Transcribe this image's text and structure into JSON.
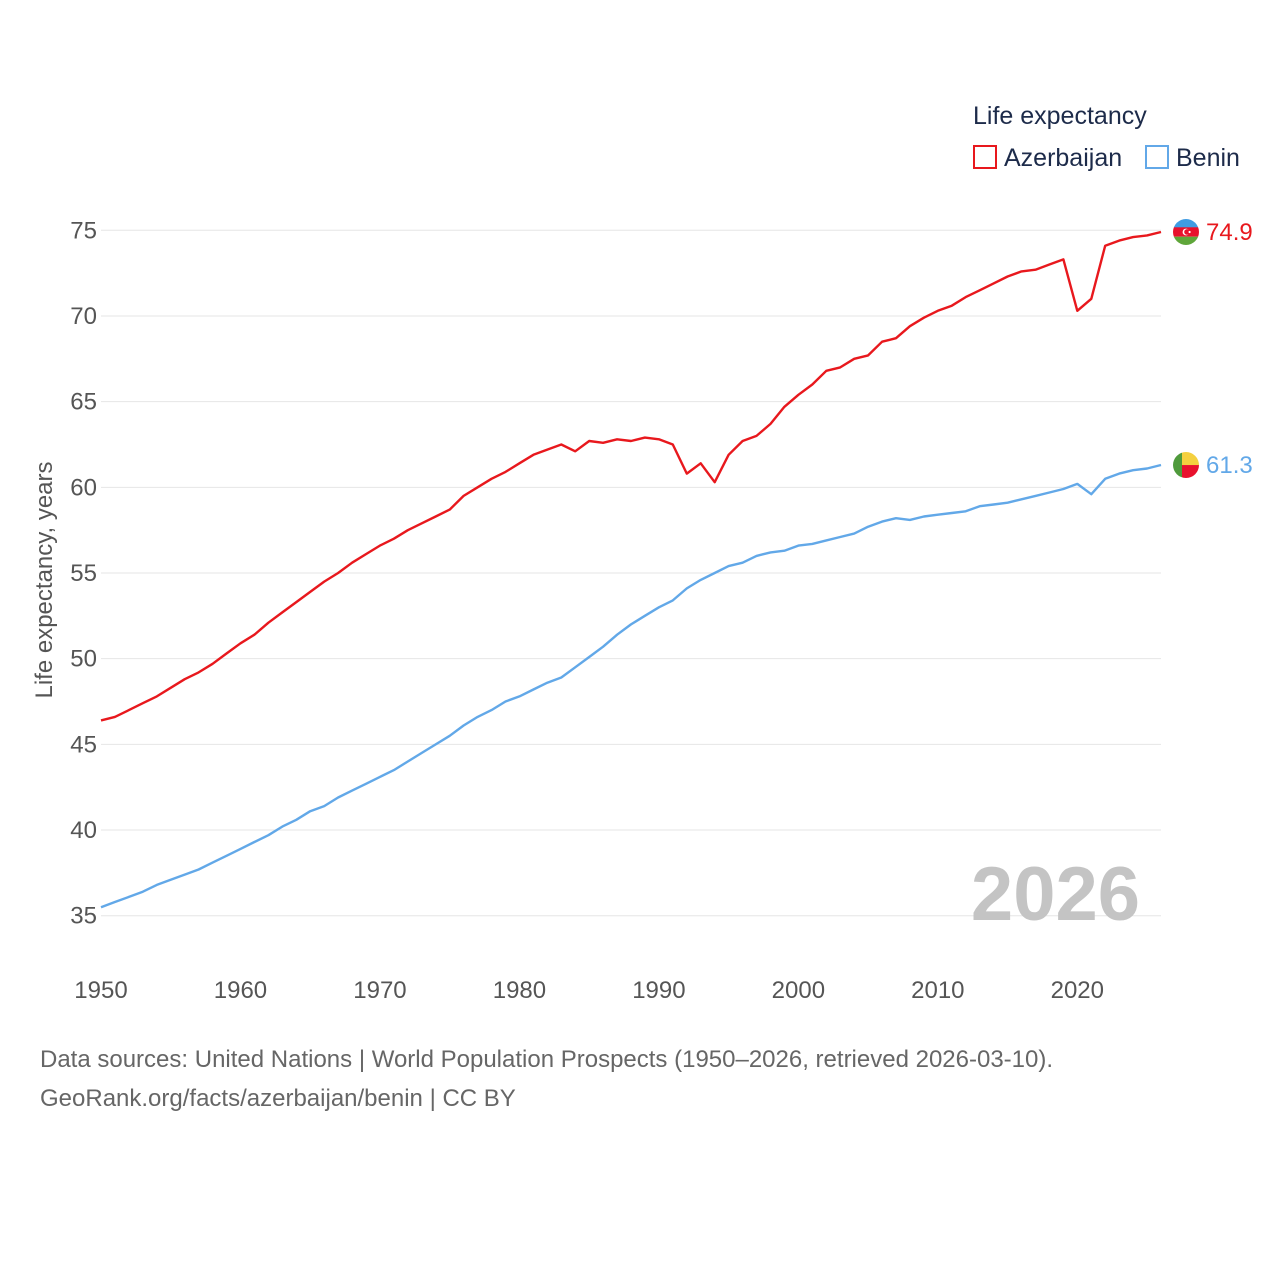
{
  "chart_data": {
    "type": "line",
    "legend_title": "Life expectancy",
    "ylabel": "Life expectancy, years",
    "xlim": [
      1950,
      2026
    ],
    "ylim": [
      33,
      77
    ],
    "y_ticks": [
      35,
      40,
      45,
      50,
      55,
      60,
      65,
      70,
      75
    ],
    "x_ticks": [
      1950,
      1960,
      1970,
      1980,
      1990,
      2000,
      2010,
      2020
    ],
    "grid": true,
    "legend_position": "top-right",
    "year_label": "2026",
    "x": [
      1950,
      1951,
      1952,
      1953,
      1954,
      1955,
      1956,
      1957,
      1958,
      1959,
      1960,
      1961,
      1962,
      1963,
      1964,
      1965,
      1966,
      1967,
      1968,
      1969,
      1970,
      1971,
      1972,
      1973,
      1974,
      1975,
      1976,
      1977,
      1978,
      1979,
      1980,
      1981,
      1982,
      1983,
      1984,
      1985,
      1986,
      1987,
      1988,
      1989,
      1990,
      1991,
      1992,
      1993,
      1994,
      1995,
      1996,
      1997,
      1998,
      1999,
      2000,
      2001,
      2002,
      2003,
      2004,
      2005,
      2006,
      2007,
      2008,
      2009,
      2010,
      2011,
      2012,
      2013,
      2014,
      2015,
      2016,
      2017,
      2018,
      2019,
      2020,
      2021,
      2022,
      2023,
      2024,
      2025,
      2026
    ],
    "series": [
      {
        "name": "Azerbaijan",
        "color": "#e8181d",
        "end_label": "74.9",
        "values": [
          46.4,
          46.6,
          47.0,
          47.4,
          47.8,
          48.3,
          48.8,
          49.2,
          49.7,
          50.3,
          50.9,
          51.4,
          52.1,
          52.7,
          53.3,
          53.9,
          54.5,
          55.0,
          55.6,
          56.1,
          56.6,
          57.0,
          57.5,
          57.9,
          58.3,
          58.7,
          59.5,
          60.0,
          60.5,
          60.9,
          61.4,
          61.9,
          62.2,
          62.5,
          62.1,
          62.7,
          62.6,
          62.8,
          62.7,
          62.9,
          62.8,
          62.5,
          60.8,
          61.4,
          60.3,
          61.9,
          62.7,
          63.0,
          63.7,
          64.7,
          65.4,
          66.0,
          66.8,
          67.0,
          67.5,
          67.7,
          68.5,
          68.7,
          69.4,
          69.9,
          70.3,
          70.6,
          71.1,
          71.5,
          71.9,
          72.3,
          72.6,
          72.7,
          73.0,
          73.3,
          70.3,
          71.0,
          74.1,
          74.4,
          74.6,
          74.7,
          74.9
        ]
      },
      {
        "name": "Benin",
        "color": "#62a8e8",
        "end_label": "61.3",
        "values": [
          35.5,
          35.8,
          36.1,
          36.4,
          36.8,
          37.1,
          37.4,
          37.7,
          38.1,
          38.5,
          38.9,
          39.3,
          39.7,
          40.2,
          40.6,
          41.1,
          41.4,
          41.9,
          42.3,
          42.7,
          43.1,
          43.5,
          44.0,
          44.5,
          45.0,
          45.5,
          46.1,
          46.6,
          47.0,
          47.5,
          47.8,
          48.2,
          48.6,
          48.9,
          49.5,
          50.1,
          50.7,
          51.4,
          52.0,
          52.5,
          53.0,
          53.4,
          54.1,
          54.6,
          55.0,
          55.4,
          55.6,
          56.0,
          56.2,
          56.3,
          56.6,
          56.7,
          56.9,
          57.1,
          57.3,
          57.7,
          58.0,
          58.2,
          58.1,
          58.3,
          58.4,
          58.5,
          58.6,
          58.9,
          59.0,
          59.1,
          59.3,
          59.5,
          59.7,
          59.9,
          60.2,
          59.6,
          60.5,
          60.8,
          61.0,
          61.1,
          61.3
        ]
      }
    ]
  },
  "footer": {
    "line1": "Data sources: United Nations | World Population Prospects (1950–2026, retrieved 2026-03-10).",
    "line2": "GeoRank.org/facts/azerbaijan/benin | CC BY"
  }
}
